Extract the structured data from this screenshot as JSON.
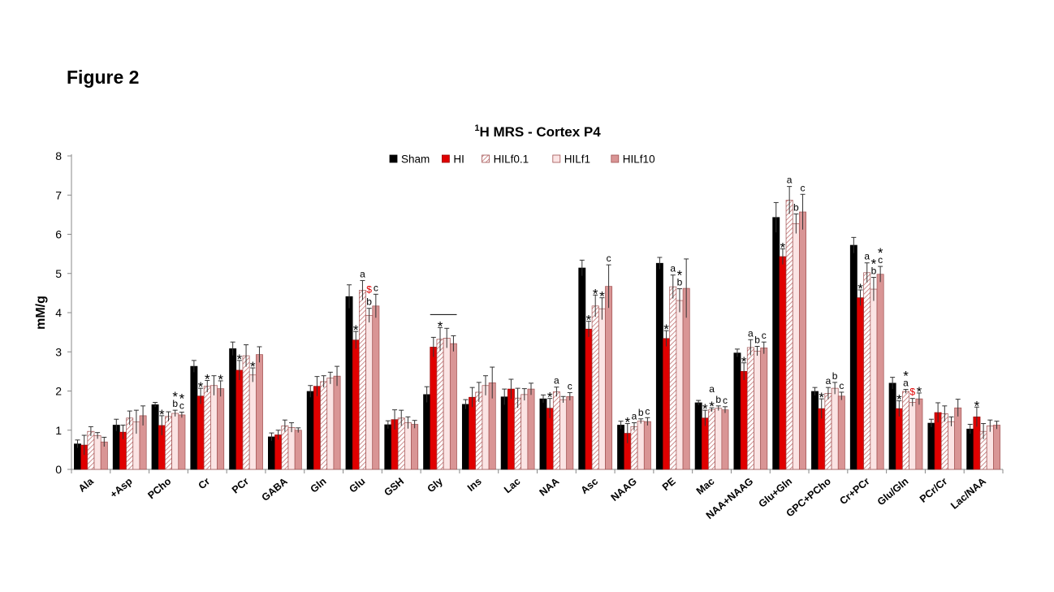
{
  "figure_label": "Figure 2",
  "chart_data": {
    "type": "bar",
    "title_sup": "1",
    "title_main": "H MRS - Cortex P4",
    "title": "1H MRS - Cortex P4",
    "xlabel": "",
    "ylabel": "mM/g",
    "ylim": [
      0,
      8
    ],
    "yticks": [
      "0",
      "1",
      "2",
      "3",
      "4",
      "5",
      "6",
      "7",
      "8"
    ],
    "categories": [
      "Ala",
      "+Asp",
      "PCho",
      "Cr",
      "PCr",
      "GABA",
      "Gln",
      "Glu",
      "GSH",
      "Gly",
      "Ins",
      "Lac",
      "NAA",
      "Asc",
      "NAAG",
      "PE",
      "Mac",
      "NAA+NAAG",
      "Glu+Gln",
      "GPC+PCho",
      "Cr+PCr",
      "Glu/Gln",
      "PCr/Cr",
      "Lac/NAA"
    ],
    "series": [
      {
        "name": "Sham",
        "color": "#000000",
        "pattern": "solid",
        "values": [
          0.65,
          1.13,
          1.65,
          2.63,
          3.08,
          0.83,
          1.99,
          4.41,
          1.14,
          1.91,
          1.66,
          1.85,
          1.8,
          5.14,
          1.13,
          5.26,
          1.7,
          2.97,
          6.43,
          1.99,
          5.72,
          2.2,
          1.18,
          1.03
        ],
        "errors": [
          0.1,
          0.15,
          0.06,
          0.15,
          0.17,
          0.1,
          0.15,
          0.3,
          0.1,
          0.2,
          0.12,
          0.2,
          0.1,
          0.2,
          0.1,
          0.15,
          0.06,
          0.1,
          0.38,
          0.1,
          0.2,
          0.15,
          0.1,
          0.12
        ]
      },
      {
        "name": "HI",
        "color": "#e00000",
        "pattern": "solid",
        "values": [
          0.62,
          0.95,
          1.12,
          1.87,
          2.53,
          0.88,
          2.12,
          3.3,
          1.27,
          3.12,
          1.84,
          2.05,
          1.56,
          3.58,
          0.92,
          3.34,
          1.31,
          2.5,
          5.43,
          1.55,
          4.38,
          1.55,
          1.45,
          1.34
        ],
        "errors": [
          0.25,
          0.18,
          0.25,
          0.2,
          0.25,
          0.12,
          0.25,
          0.22,
          0.25,
          0.25,
          0.25,
          0.25,
          0.25,
          0.2,
          0.25,
          0.2,
          0.2,
          0.22,
          0.2,
          0.25,
          0.2,
          0.2,
          0.25,
          0.25
        ]
      },
      {
        "name": "HILf0.1",
        "color": "#f4c2c2",
        "pattern": "hatch",
        "values": [
          0.97,
          1.31,
          1.35,
          2.12,
          2.9,
          1.11,
          2.24,
          4.57,
          1.31,
          3.32,
          1.97,
          1.82,
          1.98,
          4.17,
          1.09,
          4.66,
          1.52,
          3.11,
          6.87,
          1.94,
          5.02,
          1.99,
          1.42,
          0.97
        ],
        "errors": [
          0.12,
          0.18,
          0.12,
          0.15,
          0.28,
          0.15,
          0.15,
          0.25,
          0.2,
          0.3,
          0.25,
          0.25,
          0.12,
          0.28,
          0.1,
          0.3,
          0.05,
          0.2,
          0.35,
          0.15,
          0.25,
          0.05,
          0.2,
          0.2
        ]
      },
      {
        "name": "HILf1",
        "color": "#fbe4e4",
        "pattern": "solid",
        "values": [
          0.86,
          1.21,
          1.43,
          2.14,
          2.41,
          1.07,
          2.33,
          3.93,
          1.19,
          3.35,
          2.14,
          1.91,
          1.78,
          4.1,
          1.23,
          4.31,
          1.56,
          3.02,
          6.27,
          2.07,
          4.6,
          1.71,
          1.22,
          1.11
        ],
        "errors": [
          0.08,
          0.3,
          0.08,
          0.25,
          0.18,
          0.12,
          0.15,
          0.18,
          0.15,
          0.25,
          0.25,
          0.15,
          0.08,
          0.28,
          0.06,
          0.3,
          0.06,
          0.12,
          0.25,
          0.15,
          0.3,
          0.1,
          0.12,
          0.15
        ]
      },
      {
        "name": "HILf10",
        "color": "#d99595",
        "pattern": "solid",
        "values": [
          0.7,
          1.37,
          1.39,
          2.06,
          2.93,
          1.0,
          2.38,
          4.17,
          1.15,
          3.21,
          2.21,
          2.05,
          1.86,
          4.67,
          1.22,
          4.62,
          1.52,
          3.1,
          6.57,
          1.87,
          4.98,
          1.8,
          1.57,
          1.13
        ],
        "errors": [
          0.12,
          0.25,
          0.07,
          0.2,
          0.2,
          0.06,
          0.25,
          0.3,
          0.1,
          0.2,
          0.4,
          0.15,
          0.1,
          0.55,
          0.1,
          0.75,
          0.08,
          0.15,
          0.45,
          0.1,
          0.2,
          0.15,
          0.22,
          0.1
        ]
      }
    ],
    "legend_position": "top",
    "annotations": [
      {
        "category": 2,
        "series": 1,
        "text": "*",
        "color": "#000000"
      },
      {
        "category": 2,
        "series": 3,
        "text": "b",
        "color": "#000000"
      },
      {
        "category": 2,
        "series": 4,
        "text": "c",
        "color": "#000000"
      },
      {
        "category": 2,
        "series": 3,
        "text": "*",
        "color": "#000000"
      },
      {
        "category": 2,
        "series": 4,
        "text": "*",
        "color": "#000000"
      },
      {
        "category": 3,
        "series": 1,
        "text": "*",
        "color": "#000000"
      },
      {
        "category": 3,
        "series": 2,
        "text": "*",
        "color": "#000000"
      },
      {
        "category": 3,
        "series": 4,
        "text": "*",
        "color": "#000000"
      },
      {
        "category": 4,
        "series": 1,
        "text": "*",
        "color": "#000000"
      },
      {
        "category": 4,
        "series": 3,
        "text": "*",
        "color": "#000000"
      },
      {
        "category": 7,
        "series": 1,
        "text": "*",
        "color": "#000000"
      },
      {
        "category": 7,
        "series": 2,
        "text": "a",
        "color": "#000000"
      },
      {
        "category": 7,
        "series": 3,
        "text": "b",
        "color": "#000000"
      },
      {
        "category": 7,
        "series": 3,
        "text": "$",
        "color": "#e00000"
      },
      {
        "category": 7,
        "series": 4,
        "text": "c",
        "color": "#000000"
      },
      {
        "category": 9,
        "series": 2,
        "text": "*",
        "color": "#000000"
      },
      {
        "category": 12,
        "series": 1,
        "text": "*",
        "color": "#000000"
      },
      {
        "category": 12,
        "series": 2,
        "text": "a",
        "color": "#000000"
      },
      {
        "category": 12,
        "series": 4,
        "text": "c",
        "color": "#000000"
      },
      {
        "category": 13,
        "series": 1,
        "text": "*",
        "color": "#000000"
      },
      {
        "category": 13,
        "series": 2,
        "text": "*",
        "color": "#000000"
      },
      {
        "category": 13,
        "series": 3,
        "text": "*",
        "color": "#000000"
      },
      {
        "category": 13,
        "series": 4,
        "text": "c",
        "color": "#000000"
      },
      {
        "category": 14,
        "series": 1,
        "text": "*",
        "color": "#000000"
      },
      {
        "category": 14,
        "series": 2,
        "text": "a",
        "color": "#000000"
      },
      {
        "category": 14,
        "series": 3,
        "text": "b",
        "color": "#000000"
      },
      {
        "category": 14,
        "series": 4,
        "text": "c",
        "color": "#000000"
      },
      {
        "category": 15,
        "series": 1,
        "text": "*",
        "color": "#000000"
      },
      {
        "category": 15,
        "series": 2,
        "text": "a",
        "color": "#000000"
      },
      {
        "category": 15,
        "series": 3,
        "text": "b",
        "color": "#000000"
      },
      {
        "category": 15,
        "series": 3,
        "text": "*",
        "color": "#000000"
      },
      {
        "category": 16,
        "series": 1,
        "text": "*",
        "color": "#000000"
      },
      {
        "category": 16,
        "series": 2,
        "text": "*",
        "color": "#000000"
      },
      {
        "category": 16,
        "series": 2,
        "text": "a",
        "color": "#000000"
      },
      {
        "category": 16,
        "series": 3,
        "text": "b",
        "color": "#000000"
      },
      {
        "category": 16,
        "series": 4,
        "text": "c",
        "color": "#000000"
      },
      {
        "category": 17,
        "series": 1,
        "text": "*",
        "color": "#000000"
      },
      {
        "category": 17,
        "series": 2,
        "text": "a",
        "color": "#000000"
      },
      {
        "category": 17,
        "series": 3,
        "text": "b",
        "color": "#000000"
      },
      {
        "category": 17,
        "series": 4,
        "text": "c",
        "color": "#000000"
      },
      {
        "category": 18,
        "series": 1,
        "text": "*",
        "color": "#000000"
      },
      {
        "category": 18,
        "series": 2,
        "text": "a",
        "color": "#000000"
      },
      {
        "category": 18,
        "series": 3,
        "text": "b",
        "color": "#000000"
      },
      {
        "category": 18,
        "series": 4,
        "text": "c",
        "color": "#000000"
      },
      {
        "category": 19,
        "series": 1,
        "text": "*",
        "color": "#000000"
      },
      {
        "category": 19,
        "series": 2,
        "text": "a",
        "color": "#000000"
      },
      {
        "category": 19,
        "series": 3,
        "text": "b",
        "color": "#000000"
      },
      {
        "category": 19,
        "series": 4,
        "text": "c",
        "color": "#000000"
      },
      {
        "category": 20,
        "series": 1,
        "text": "*",
        "color": "#000000"
      },
      {
        "category": 20,
        "series": 2,
        "text": "a",
        "color": "#000000"
      },
      {
        "category": 20,
        "series": 3,
        "text": "b",
        "color": "#000000"
      },
      {
        "category": 20,
        "series": 4,
        "text": "c",
        "color": "#000000"
      },
      {
        "category": 20,
        "series": 3,
        "text": "*",
        "color": "#000000"
      },
      {
        "category": 20,
        "series": 4,
        "text": "*",
        "color": "#000000"
      },
      {
        "category": 21,
        "series": 1,
        "text": "*",
        "color": "#000000"
      },
      {
        "category": 21,
        "series": 2,
        "text": "a",
        "color": "#000000"
      },
      {
        "category": 21,
        "series": 2,
        "text": "*",
        "color": "#000000"
      },
      {
        "category": 21,
        "series": 3,
        "text": "$",
        "color": "#e00000"
      },
      {
        "category": 21,
        "series": 4,
        "text": "*",
        "color": "#000000"
      },
      {
        "category": 23,
        "series": 1,
        "text": "*",
        "color": "#000000"
      }
    ]
  }
}
